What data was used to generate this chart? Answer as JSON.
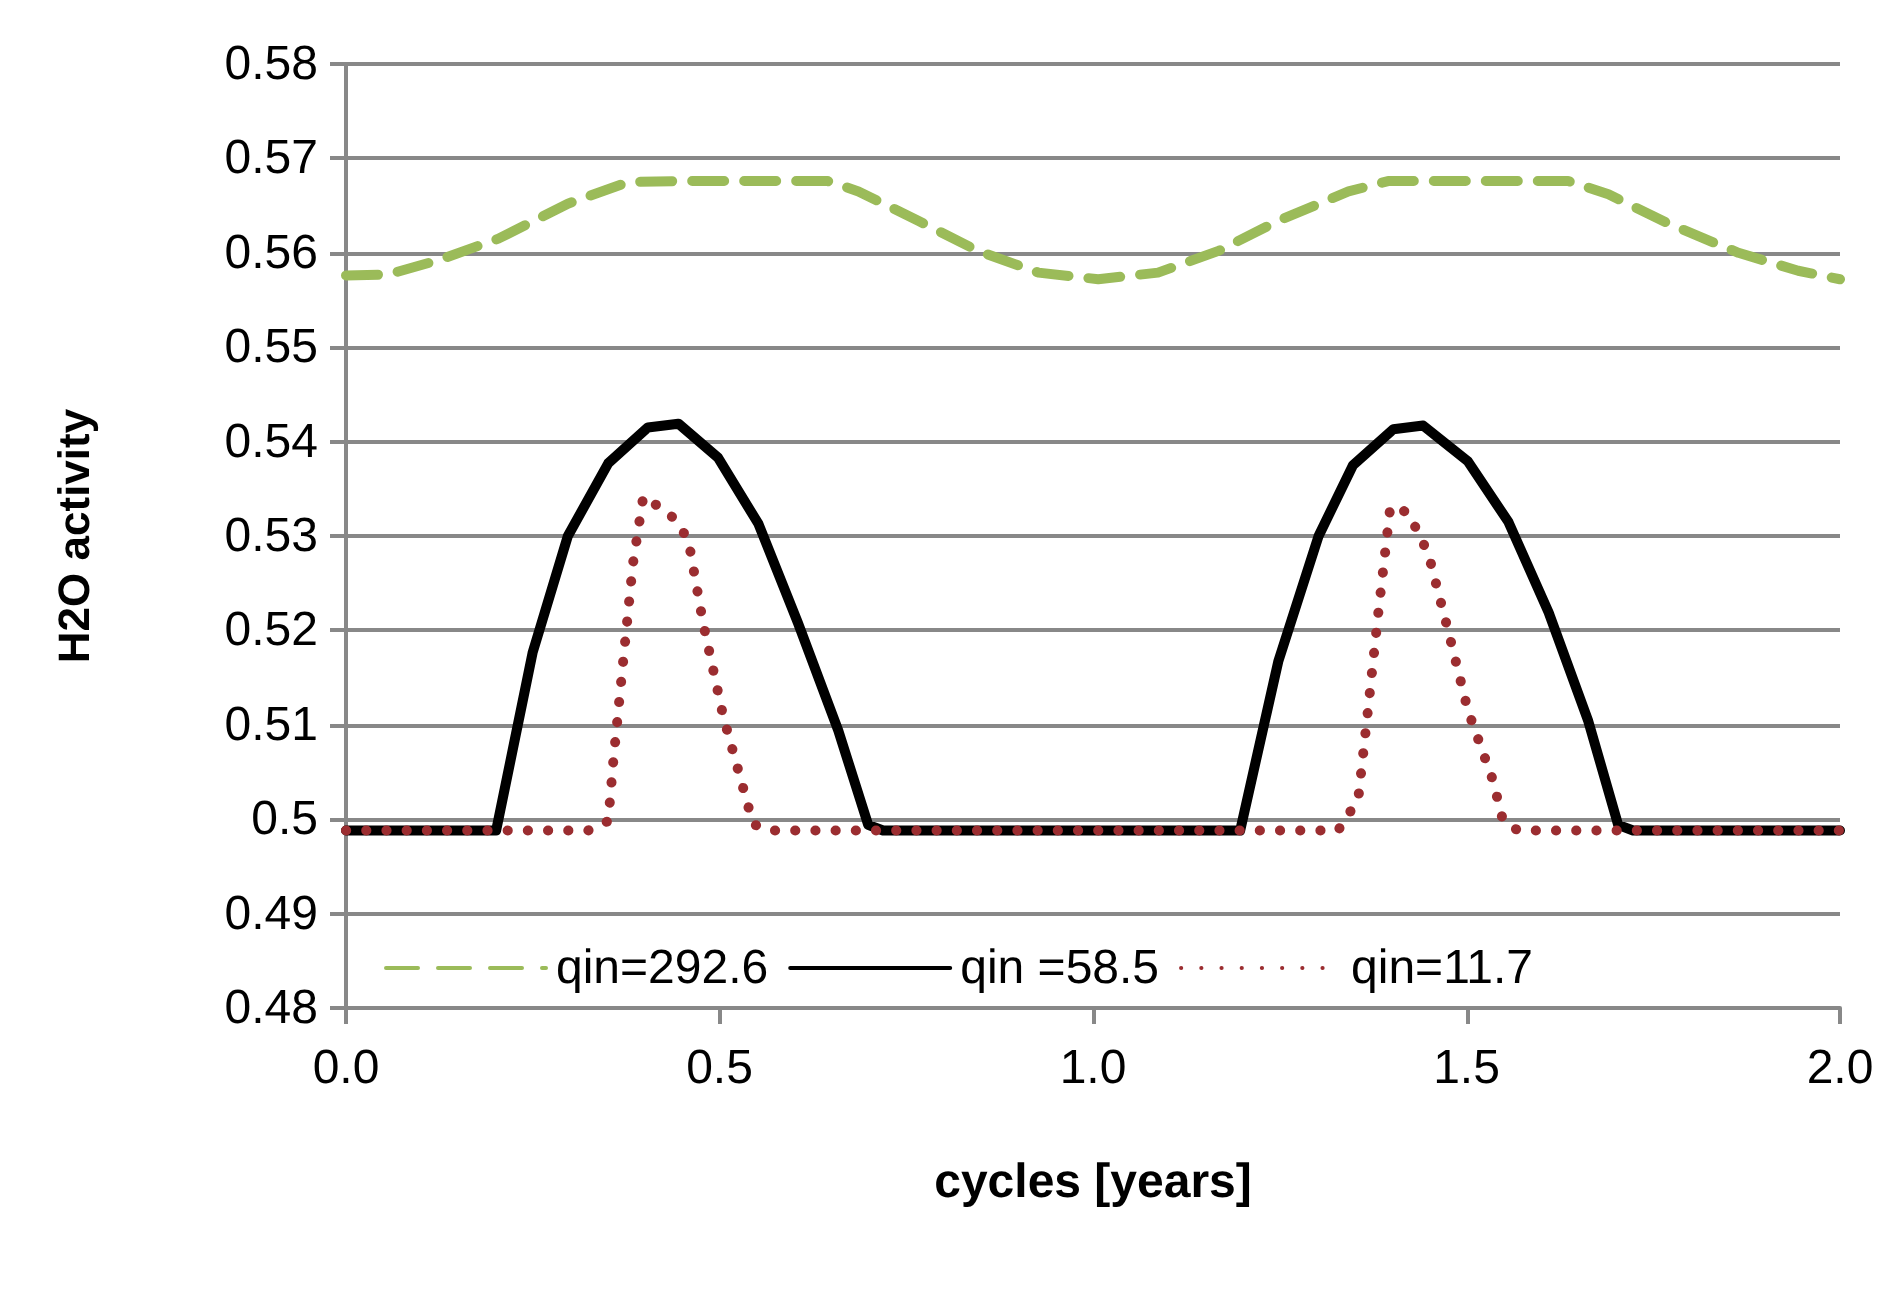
{
  "chart_data": {
    "type": "line",
    "xlabel": "cycles [years]",
    "ylabel": "H2O activity",
    "xlim": [
      0,
      2
    ],
    "xticks": [
      {
        "value": 0,
        "label": "0.0"
      },
      {
        "value": 0.5,
        "label": "0.5"
      },
      {
        "value": 1,
        "label": "1.0"
      },
      {
        "value": 1.5,
        "label": "1.5"
      },
      {
        "value": 2,
        "label": "2.0"
      }
    ],
    "ylim": [
      0.48,
      0.58
    ],
    "yticks": [
      0.48,
      0.49,
      0.5,
      0.51,
      0.52,
      0.53,
      0.54,
      0.55,
      0.56,
      0.57,
      0.58
    ],
    "grid": "y",
    "legend": "bottom",
    "marker": "none",
    "series": [
      {
        "name": "qin=292.6",
        "color": "#9bbb59",
        "line_style": "dashed",
        "x": [
          0,
          0.056,
          0.123,
          0.204,
          0.297,
          0.378,
          0.445,
          0.645,
          0.686,
          0.766,
          0.846,
          0.927,
          1.007,
          1.087,
          1.168,
          1.248,
          1.342,
          1.395,
          1.636,
          1.69,
          1.77,
          1.864,
          1.944,
          2.0
        ],
        "values": [
          0.5576,
          0.5577,
          0.5592,
          0.5615,
          0.5652,
          0.5675,
          0.5676,
          0.5676,
          0.5665,
          0.5634,
          0.5602,
          0.5579,
          0.5572,
          0.5579,
          0.5602,
          0.5634,
          0.5665,
          0.5676,
          0.5676,
          0.5662,
          0.5631,
          0.56,
          0.5581,
          0.5572
        ]
      },
      {
        "name": "qin =58.5",
        "color": "#000000",
        "line_style": "solid",
        "x": [
          0,
          0.201,
          0.25,
          0.297,
          0.351,
          0.404,
          0.445,
          0.498,
          0.552,
          0.605,
          0.659,
          0.699,
          0.719,
          1.197,
          1.248,
          1.302,
          1.348,
          1.402,
          1.442,
          1.502,
          1.556,
          1.61,
          1.663,
          1.703,
          1.723,
          2.0
        ],
        "values": [
          0.4988,
          0.4988,
          0.5177,
          0.53,
          0.5377,
          0.5415,
          0.5419,
          0.5383,
          0.5313,
          0.5208,
          0.5094,
          0.4994,
          0.4988,
          0.4988,
          0.5167,
          0.53,
          0.5375,
          0.5413,
          0.5417,
          0.5379,
          0.5315,
          0.5219,
          0.5104,
          0.4994,
          0.4988,
          0.4988
        ]
      },
      {
        "name": "qin=11.7",
        "color": "#9b2d30",
        "line_style": "dotted",
        "x": [
          0,
          0.324,
          0.351,
          0.358,
          0.371,
          0.384,
          0.398,
          0.434,
          0.458,
          0.478,
          0.505,
          0.525,
          0.545,
          0.565,
          1.328,
          1.355,
          1.368,
          1.382,
          1.398,
          1.422,
          1.449,
          1.476,
          1.502,
          1.535,
          1.549,
          1.569,
          2.0
        ],
        "values": [
          0.4988,
          0.4988,
          0.4998,
          0.5063,
          0.5167,
          0.527,
          0.5342,
          0.5323,
          0.5297,
          0.5208,
          0.5109,
          0.5052,
          0.4995,
          0.4988,
          0.4988,
          0.5021,
          0.5115,
          0.5219,
          0.5331,
          0.5325,
          0.5281,
          0.5198,
          0.5115,
          0.5042,
          0.4998,
          0.4988,
          0.4988
        ]
      }
    ]
  }
}
